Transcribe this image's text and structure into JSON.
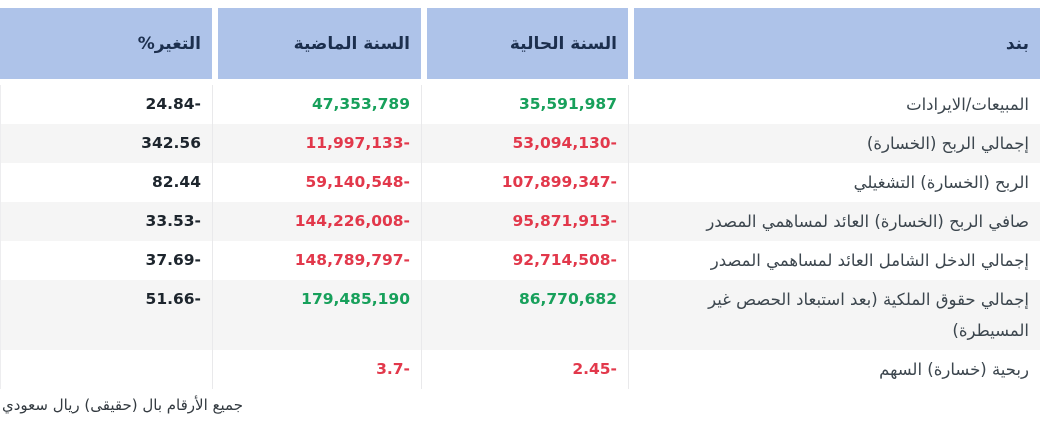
{
  "colors": {
    "header_bg": "#aec3e9",
    "header_text": "#1c2f4e",
    "row_alt": "#f5f5f5",
    "positive": "#17a05b",
    "negative": "#e2384b",
    "neutral": "#1d252d"
  },
  "table": {
    "columns": [
      {
        "key": "item",
        "label": "بند"
      },
      {
        "key": "current",
        "label": "السنة الحالية"
      },
      {
        "key": "previous",
        "label": "السنة الماضية"
      },
      {
        "key": "change",
        "label": "التغير%"
      }
    ],
    "rows": [
      {
        "item": "المبيعات/الايرادات",
        "current": "35,591,987",
        "current_tone": "pos",
        "previous": "47,353,789",
        "previous_tone": "pos",
        "change": "24.84-",
        "change_tone": "neutral"
      },
      {
        "item": "إجمالي الربح (الخسارة)",
        "current": "53,094,130-",
        "current_tone": "neg",
        "previous": "11,997,133-",
        "previous_tone": "neg",
        "change": "342.56",
        "change_tone": "neutral"
      },
      {
        "item": "الربح (الخسارة) التشغيلي",
        "current": "107,899,347-",
        "current_tone": "neg",
        "previous": "59,140,548-",
        "previous_tone": "neg",
        "change": "82.44",
        "change_tone": "neutral"
      },
      {
        "item": "صافي الربح (الخسارة) العائد لمساهمي المصدر",
        "current": "95,871,913-",
        "current_tone": "neg",
        "previous": "144,226,008-",
        "previous_tone": "neg",
        "change": "33.53-",
        "change_tone": "neutral"
      },
      {
        "item": "إجمالي الدخل الشامل العائد لمساهمي المصدر",
        "current": "92,714,508-",
        "current_tone": "neg",
        "previous": "148,789,797-",
        "previous_tone": "neg",
        "change": "37.69-",
        "change_tone": "neutral"
      },
      {
        "item": "إجمالي حقوق الملكية (بعد استبعاد الحصص غير المسيطرة)",
        "current": "86,770,682",
        "current_tone": "pos",
        "previous": "179,485,190",
        "previous_tone": "pos",
        "change": "51.66-",
        "change_tone": "neutral"
      },
      {
        "item": "ربحية (خسارة) السهم",
        "current": "2.45-",
        "current_tone": "neg",
        "previous": "3.7-",
        "previous_tone": "neg",
        "change": "",
        "change_tone": "neutral"
      }
    ],
    "footnote": "جميع الأرقام بال (حقيقى) ريال سعودي"
  }
}
